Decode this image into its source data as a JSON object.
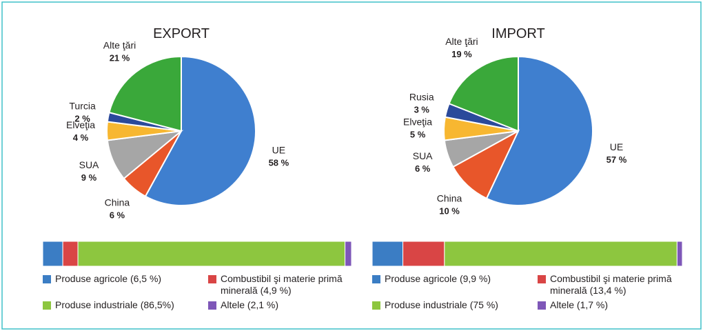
{
  "chart_data": [
    {
      "type": "pie",
      "title": "EXPORT",
      "categories": [
        "UE",
        "China",
        "SUA",
        "Elveţia",
        "Turcia",
        "Alte ţări"
      ],
      "values": [
        58,
        6,
        9,
        4,
        2,
        21
      ],
      "value_labels": [
        "58 %",
        "6 %",
        "9 %",
        "4 %",
        "2 %",
        "21 %"
      ],
      "colors": [
        "#3f7fcf",
        "#e8562a",
        "#a6a6a6",
        "#f7b731",
        "#2b4a9b",
        "#3aa83a"
      ]
    },
    {
      "type": "pie",
      "title": "IMPORT",
      "categories": [
        "UE",
        "China",
        "SUA",
        "Elveţia",
        "Rusia",
        "Alte ţări"
      ],
      "values": [
        57,
        10,
        6,
        5,
        3,
        19
      ],
      "value_labels": [
        "57 %",
        "10 %",
        "6 %",
        "5 %",
        "3 %",
        "19 %"
      ],
      "colors": [
        "#3f7fcf",
        "#e8562a",
        "#a6a6a6",
        "#f7b731",
        "#2b4a9b",
        "#3aa83a"
      ]
    },
    {
      "type": "stacked_bar",
      "xlim": [
        0,
        100
      ],
      "series": [
        {
          "name": "Produse agricole (6,5 %)",
          "color": "#3b7dc4",
          "values": [
            6.5
          ]
        },
        {
          "name": "Combustibil şi materie primă minerală (4,9 %)",
          "color": "#d94545",
          "values": [
            4.9
          ]
        },
        {
          "name": "Produse industriale (86,5%)",
          "color": "#8dc63f",
          "values": [
            86.5
          ]
        },
        {
          "name": "Altele (2,1 %)",
          "color": "#7e57b8",
          "values": [
            2.1
          ]
        }
      ]
    },
    {
      "type": "stacked_bar",
      "xlim": [
        0,
        100
      ],
      "series": [
        {
          "name": "Produse agricole (9,9 %)",
          "color": "#3b7dc4",
          "values": [
            9.9
          ]
        },
        {
          "name": "Combustibil şi materie primă minerală (13,4 %)",
          "color": "#d94545",
          "values": [
            13.4
          ]
        },
        {
          "name": "Produse industriale (75 %)",
          "color": "#8dc63f",
          "values": [
            75
          ]
        },
        {
          "name": "Altele (1,7 %)",
          "color": "#7e57b8",
          "values": [
            1.7
          ]
        }
      ]
    }
  ]
}
